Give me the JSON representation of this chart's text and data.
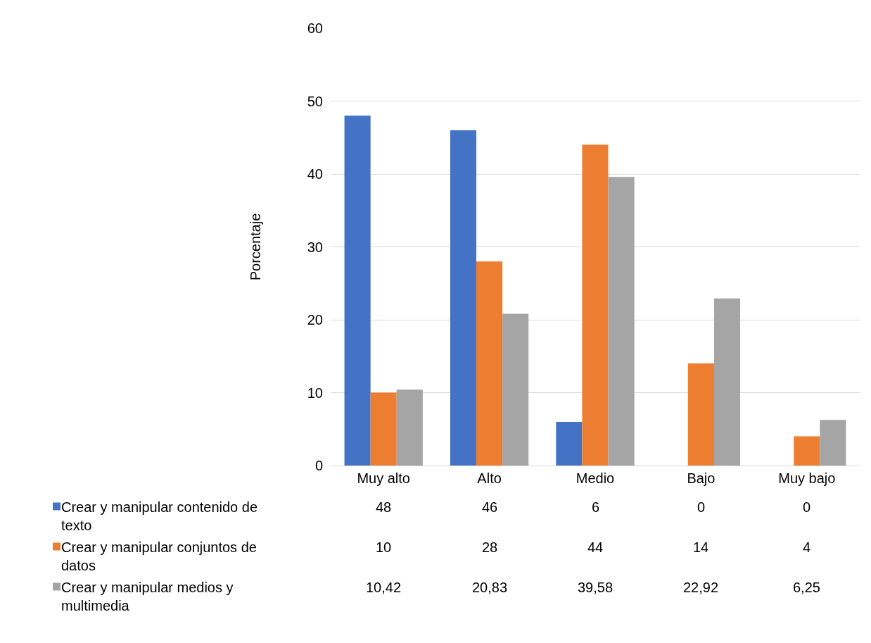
{
  "chart_data": {
    "type": "bar",
    "ylabel": "Porcentaje",
    "categories": [
      "Muy alto",
      "Alto",
      "Medio",
      "Bajo",
      "Muy bajo"
    ],
    "series": [
      {
        "name": "Crear y manipular contenido de texto",
        "color": "#4472c4",
        "values": [
          48,
          46,
          6,
          0,
          0
        ],
        "value_labels": [
          "48",
          "46",
          "6",
          "0",
          "0"
        ]
      },
      {
        "name": "Crear y manipular conjuntos de datos",
        "color": "#ed7d31",
        "values": [
          10,
          28,
          44,
          14,
          4
        ],
        "value_labels": [
          "10",
          "28",
          "44",
          "14",
          "4"
        ]
      },
      {
        "name": "Crear y manipular medios y multimedia",
        "color": "#a5a5a5",
        "values": [
          10.42,
          20.83,
          39.58,
          22.92,
          6.25
        ],
        "value_labels": [
          "10,42",
          "20,83",
          "39,58",
          "22,92",
          "6,25"
        ]
      }
    ],
    "ylim": [
      0,
      60
    ],
    "yticks": [
      0,
      10,
      20,
      30,
      40,
      50,
      60
    ],
    "grid": "y",
    "legend": "bottom left"
  }
}
